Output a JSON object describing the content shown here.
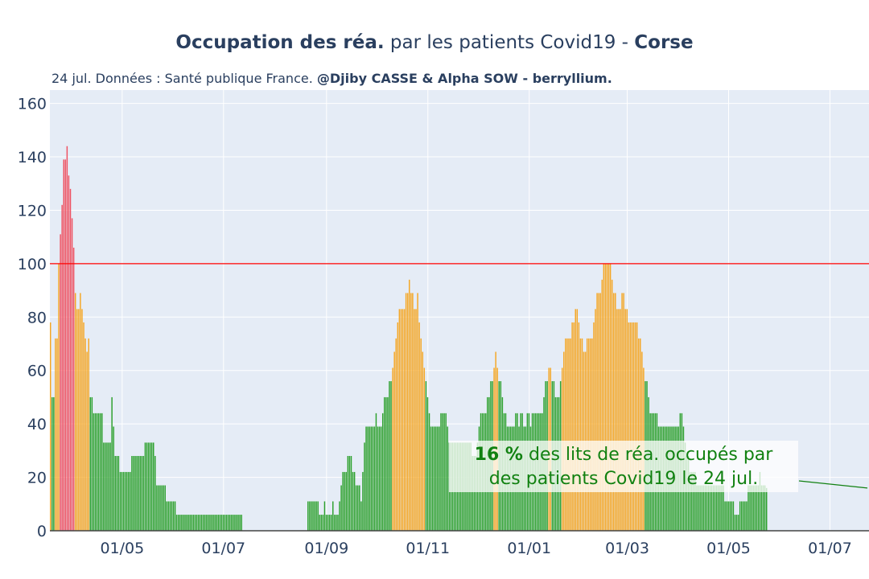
{
  "header": {
    "title_bold": "Occupation des réa.",
    "title_mid": " par les patients Covid19 - ",
    "title_region": "Corse",
    "subtitle_plain": "24 jul. Données : Santé publique France. ",
    "subtitle_bold": "@Djiby CASSE & Alpha SOW - berryllium."
  },
  "annotation": {
    "percent": "16  %",
    "text_line1": " des lits de réa. occupés par",
    "text_line2": "des patients Covid19 le 24 jul."
  },
  "chart_data": {
    "type": "bar",
    "x_start": "2020-03-19",
    "x_end": "2021-07-24",
    "ylim": [
      0,
      165
    ],
    "yticks": [
      0,
      20,
      40,
      60,
      80,
      100,
      120,
      140,
      160
    ],
    "xtick_labels": [
      "01/05",
      "01/07",
      "01/09",
      "01/11",
      "01/01",
      "01/03",
      "01/05",
      "01/07"
    ],
    "xtick_dates": [
      "2020-05-01",
      "2020-07-01",
      "2020-09-01",
      "2020-11-01",
      "2021-01-01",
      "2021-03-01",
      "2021-05-01",
      "2021-07-01"
    ],
    "threshold": 100,
    "grid": true,
    "colors": {
      "low": "#2ca02c",
      "mid": "#f5a623",
      "high": "#ef5060",
      "threshold": "#ff0000",
      "grid": "#ffffff",
      "plot_bg": "#e5ecf6"
    },
    "series": [
      {
        "segments": [
          {
            "start": "2020-03-19",
            "values": [
              78,
              50,
              50,
              72,
              72,
              100,
              111,
              122,
              139,
              139,
              144,
              133,
              128,
              117,
              106,
              89,
              83,
              83,
              89,
              83,
              78,
              72,
              67,
              72,
              50,
              50,
              44,
              44,
              44,
              44,
              44,
              44,
              33,
              33,
              33,
              33,
              33,
              50,
              39,
              28,
              28,
              28,
              22,
              22,
              22,
              22,
              22,
              22,
              22,
              28,
              28,
              28,
              28,
              28,
              28,
              28,
              28,
              33,
              33,
              33,
              33,
              33,
              33,
              28,
              17,
              17,
              17,
              17,
              17,
              17,
              11,
              11,
              11,
              11,
              11,
              11,
              6,
              6,
              6,
              6,
              6,
              6,
              6,
              6,
              6,
              6,
              6,
              6,
              6,
              6,
              6,
              6,
              6,
              6,
              6,
              6,
              6,
              6,
              6,
              6,
              6,
              6,
              6,
              6,
              6,
              6,
              6,
              6,
              6,
              6,
              6,
              6,
              6,
              6,
              6,
              6
            ]
          },
          {
            "start": "2020-08-21",
            "values": [
              11,
              11,
              11,
              11,
              11,
              11,
              11,
              6,
              6,
              6,
              11,
              6,
              6,
              6,
              6,
              11,
              6,
              6,
              6,
              11,
              17,
              22,
              22,
              22,
              28,
              28,
              28,
              22,
              22,
              17,
              17,
              17,
              11,
              22,
              33,
              39,
              39,
              39,
              39,
              39,
              39,
              44,
              39,
              39,
              39,
              44,
              50,
              50,
              50,
              56,
              56,
              61,
              67,
              72,
              78,
              83,
              83,
              83,
              83,
              89,
              89,
              94,
              89,
              89,
              83,
              83,
              89,
              78,
              72,
              67,
              61,
              56,
              50,
              44,
              39,
              39,
              39,
              39,
              39,
              39,
              44,
              44,
              44,
              44,
              39,
              33,
              33,
              33,
              33,
              33,
              33,
              33,
              33,
              33,
              33,
              33,
              33,
              33,
              33,
              28,
              28,
              28,
              33,
              39,
              44,
              44,
              44,
              44,
              50,
              50,
              56,
              56,
              61,
              67,
              61,
              56,
              56,
              50,
              44,
              44,
              39,
              39,
              39,
              39,
              39,
              44,
              44,
              39,
              44,
              44,
              39,
              39,
              44,
              44,
              39,
              44,
              44,
              44,
              44,
              44,
              44,
              44,
              50,
              56,
              56,
              61,
              61,
              56,
              56,
              50,
              50,
              50,
              56,
              61,
              67,
              72,
              72,
              72,
              72,
              78,
              78,
              83,
              83,
              78,
              72,
              72,
              67,
              67,
              72,
              72,
              72,
              72,
              78,
              83,
              89,
              89,
              89,
              94,
              100,
              100,
              100,
              100,
              100,
              94,
              89,
              89,
              83,
              83,
              83,
              89,
              89,
              83,
              83,
              78,
              78,
              78,
              78,
              78,
              78,
              72,
              72,
              67,
              61,
              56,
              56,
              50,
              44,
              44,
              44,
              44,
              44,
              39,
              39,
              39,
              39,
              39,
              39,
              39,
              39,
              39,
              39,
              39,
              39,
              39,
              44,
              44,
              39,
              33,
              28,
              28,
              22,
              22,
              22,
              22,
              17,
              17,
              17,
              17,
              17,
              17,
              17,
              17,
              17,
              17,
              17,
              17,
              17,
              17,
              17,
              17,
              17,
              11,
              11,
              11,
              11,
              11,
              11,
              6,
              6,
              6,
              11,
              11,
              11,
              11,
              11,
              17,
              17,
              17,
              17,
              17,
              17,
              17,
              22,
              17,
              17,
              17,
              16
            ]
          }
        ]
      }
    ]
  }
}
